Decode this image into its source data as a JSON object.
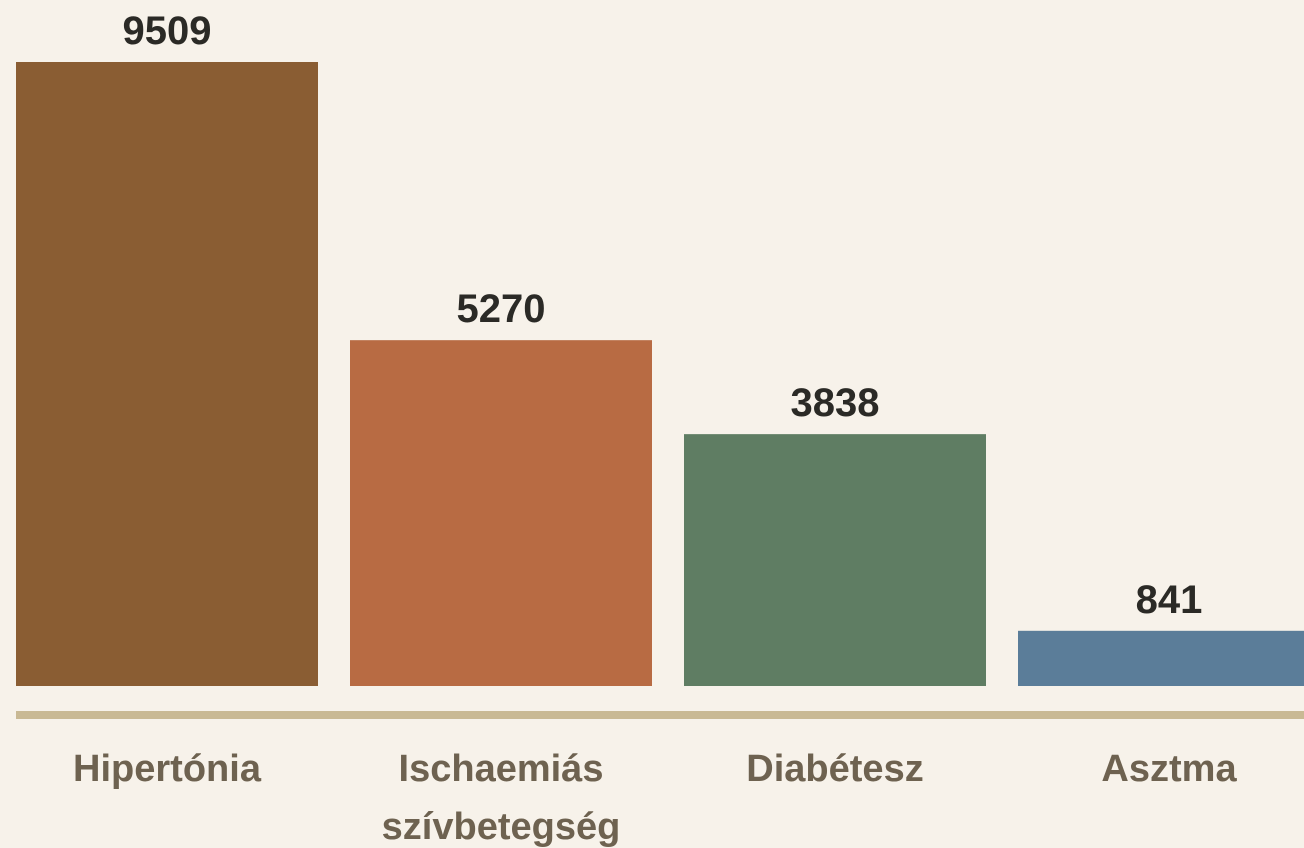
{
  "chart_data": {
    "type": "bar",
    "categories": [
      "Hipertónia",
      "Ischaemiás szívbetegség",
      "Diabétesz",
      "Asztma"
    ],
    "values": [
      9509,
      5270,
      3838,
      841
    ],
    "colors": [
      "#8a5d33",
      "#b86b43",
      "#5f7d63",
      "#5b7d99"
    ]
  }
}
